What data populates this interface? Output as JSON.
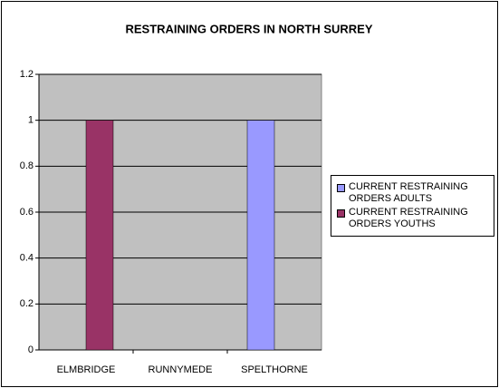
{
  "chart_data": {
    "type": "bar",
    "title": "RESTRAINING ORDERS IN NORTH SURREY",
    "categories": [
      "ELMBRIDGE",
      "RUNNYMEDE",
      "SPELTHORNE"
    ],
    "series": [
      {
        "name": "CURRENT RESTRAINING ORDERS ADULTS",
        "color": "#9999ff",
        "values": [
          0,
          0,
          1
        ]
      },
      {
        "name": "CURRENT RESTRAINING ORDERS YOUTHS",
        "color": "#993366",
        "values": [
          1,
          0,
          0
        ]
      }
    ],
    "ylim": [
      0,
      1.2
    ],
    "yticks": [
      0,
      0.2,
      0.4,
      0.6,
      0.8,
      1,
      1.2
    ],
    "grid": true,
    "legend": "right",
    "plot_background": "#c0c0c0"
  }
}
